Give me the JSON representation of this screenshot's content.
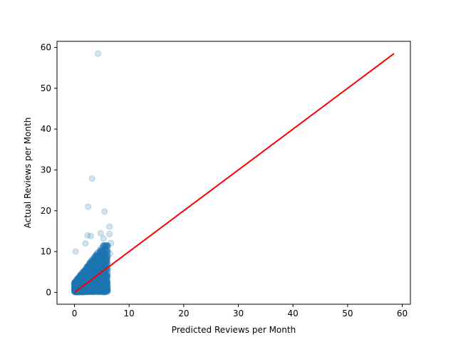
{
  "chart_data": {
    "type": "scatter",
    "title": "",
    "xlabel": "Predicted Reviews per Month",
    "ylabel": "Actual Reviews per Month",
    "xlim": [
      -3.2,
      61.5
    ],
    "ylim": [
      -2.9,
      61.5
    ],
    "xticks": [
      0,
      10,
      20,
      30,
      40,
      50,
      60
    ],
    "yticks": [
      0,
      10,
      20,
      30,
      40,
      50,
      60
    ],
    "grid": false,
    "legend": "none",
    "series": [
      {
        "kind": "scatter",
        "color": "#1f77b4",
        "opacity": 0.2,
        "points": [
          [
            4.3,
            58.5
          ],
          [
            3.2,
            27.9
          ],
          [
            2.5,
            21.0
          ],
          [
            5.5,
            19.8
          ],
          [
            6.4,
            16.1
          ],
          [
            6.4,
            14.3
          ],
          [
            2.4,
            14.0
          ],
          [
            3.0,
            13.8
          ],
          [
            4.8,
            14.5
          ],
          [
            6.7,
            12.1
          ],
          [
            5.3,
            13.2
          ],
          [
            2.0,
            12.0
          ],
          [
            0.2,
            10.0
          ],
          [
            6.5,
            9.5
          ],
          [
            6.1,
            10.1
          ],
          [
            5.9,
            8.8
          ]
        ]
      },
      {
        "kind": "line",
        "color": "#ff0000",
        "points": [
          [
            0.0,
            0.0
          ],
          [
            58.5,
            58.5
          ]
        ]
      }
    ]
  }
}
